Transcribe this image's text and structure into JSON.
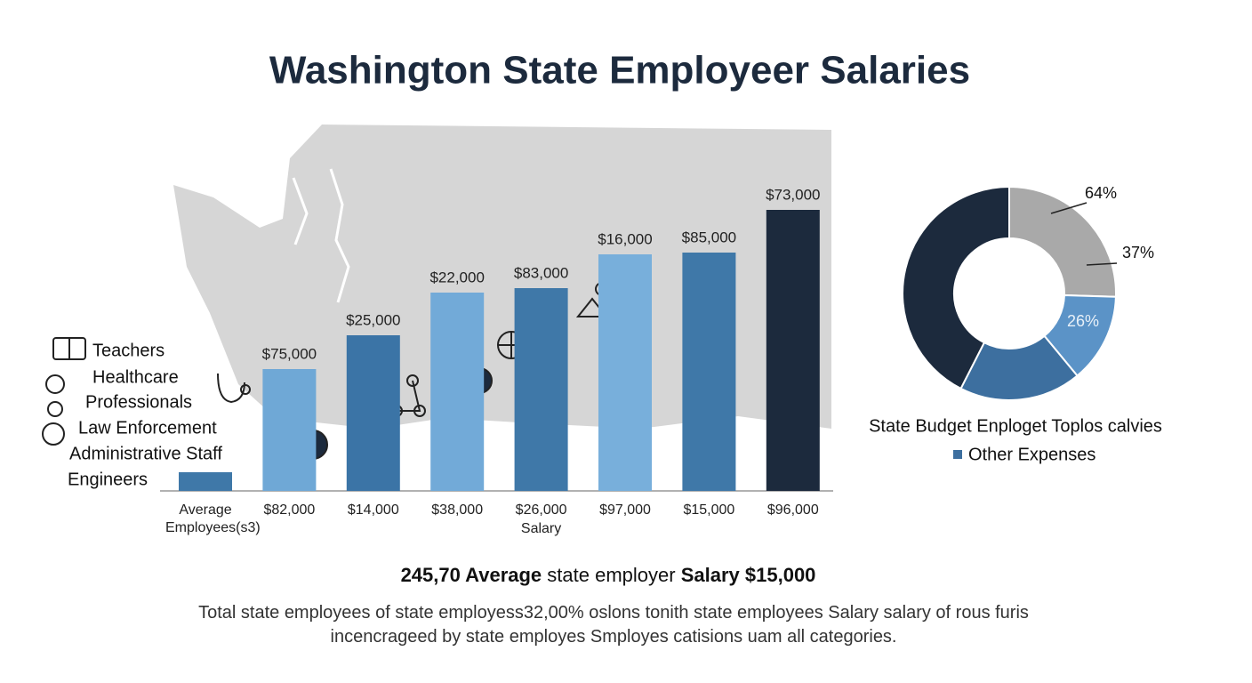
{
  "title": "Washington State Employeer Salaries",
  "chart_data": [
    {
      "type": "bar",
      "categories": [
        "Average Employees(s3)",
        "$82,000",
        "$14,000",
        "$38,000",
        "$26,000",
        "$97,000",
        "$15,000",
        "$96,000"
      ],
      "values": [
        21,
        137,
        175,
        223,
        228,
        266,
        268,
        316
      ],
      "bar_labels": [
        null,
        "$75,000",
        "$25,000",
        "$22,000",
        "$83,000",
        "$16,000",
        "$85,000",
        "$73,000"
      ],
      "colors": [
        "#3f78a8",
        "#6fa8d6",
        "#3b74a6",
        "#72aad8",
        "#3f78a8",
        "#78afdb",
        "#3f78a8",
        "#1c2a3d"
      ],
      "x_label": "Salary",
      "legend_items": [
        "Teachers",
        "Healthcare",
        "Professionals",
        "Law Enforcement",
        "Administrative Staff",
        "Engineers"
      ]
    },
    {
      "type": "donut",
      "values": [
        25.5,
        13.5,
        18.5,
        42.5
      ],
      "colors": [
        "#a9a9a9",
        "#5b93c7",
        "#3d6f9f",
        "#1c2a3d"
      ],
      "annotations": [
        "64%",
        "37%",
        "26%"
      ],
      "title": "State Budget Enploget Toplos calvies",
      "legend": [
        {
          "name": "Other Expenses",
          "color": "#3d6f9f"
        }
      ]
    }
  ],
  "summary": [
    "245,70 Average",
    "state employer",
    "Salary $15,000"
  ],
  "footnote": [
    "Total state employees of state employess32,00% oslons tonith state employees Salary salary of rous furis",
    "incencrageed by state employes Smployes catisions uam all categories."
  ]
}
